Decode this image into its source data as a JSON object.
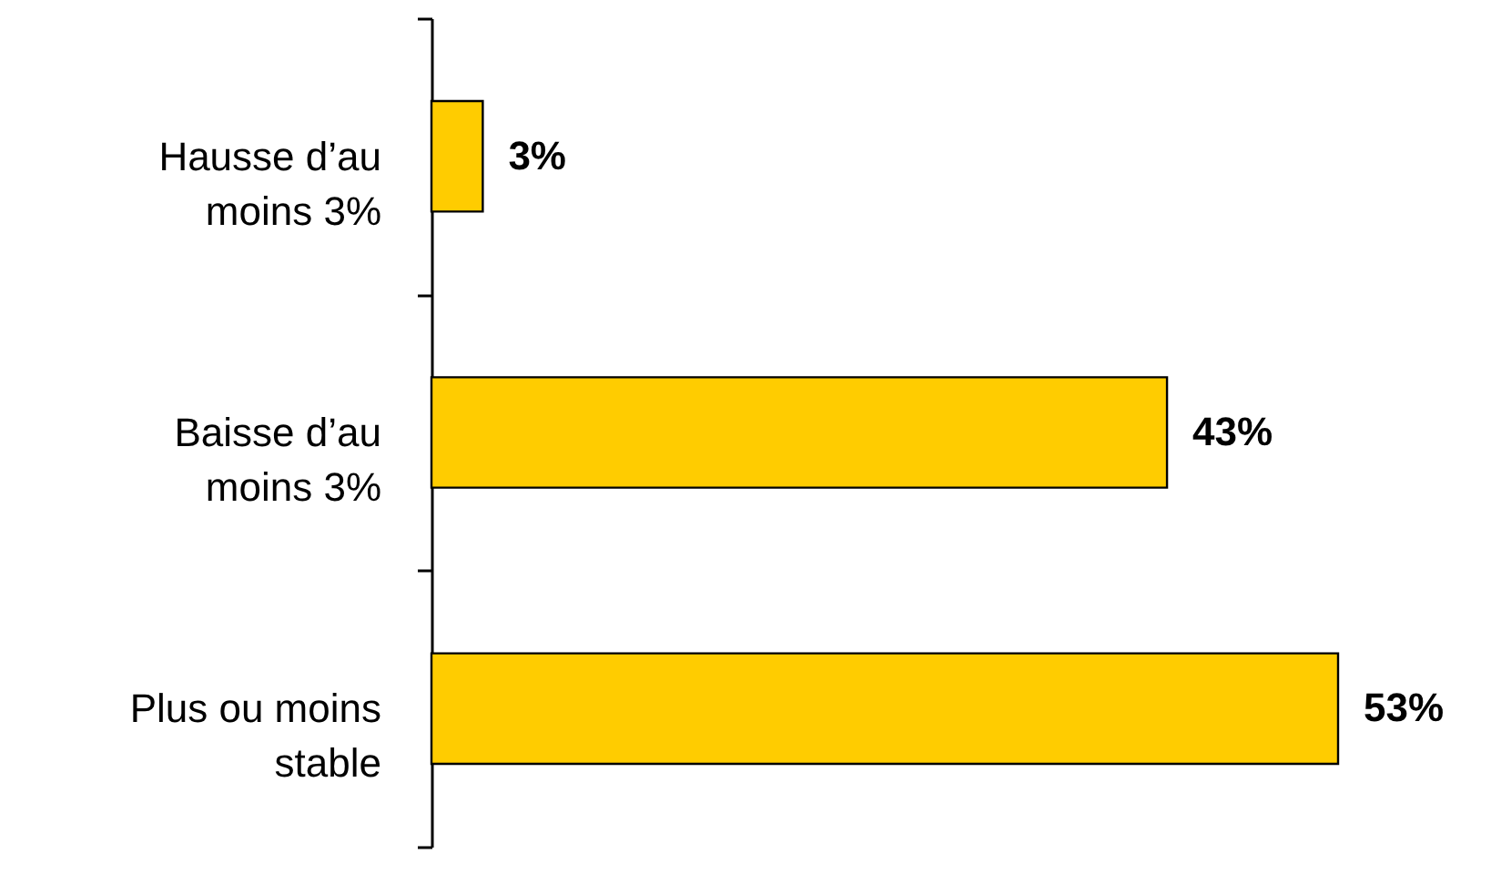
{
  "chart_data": {
    "type": "bar",
    "orientation": "horizontal",
    "categories": [
      "Hausse d’au moins 3%",
      "Baisse d’au moins 3%",
      "Plus ou moins stable"
    ],
    "values": [
      3,
      43,
      53
    ],
    "color": "#ffcc00",
    "data_labels": true,
    "value_labels": [
      "3%",
      "43%",
      "53%"
    ],
    "tick_labels": "y"
  }
}
